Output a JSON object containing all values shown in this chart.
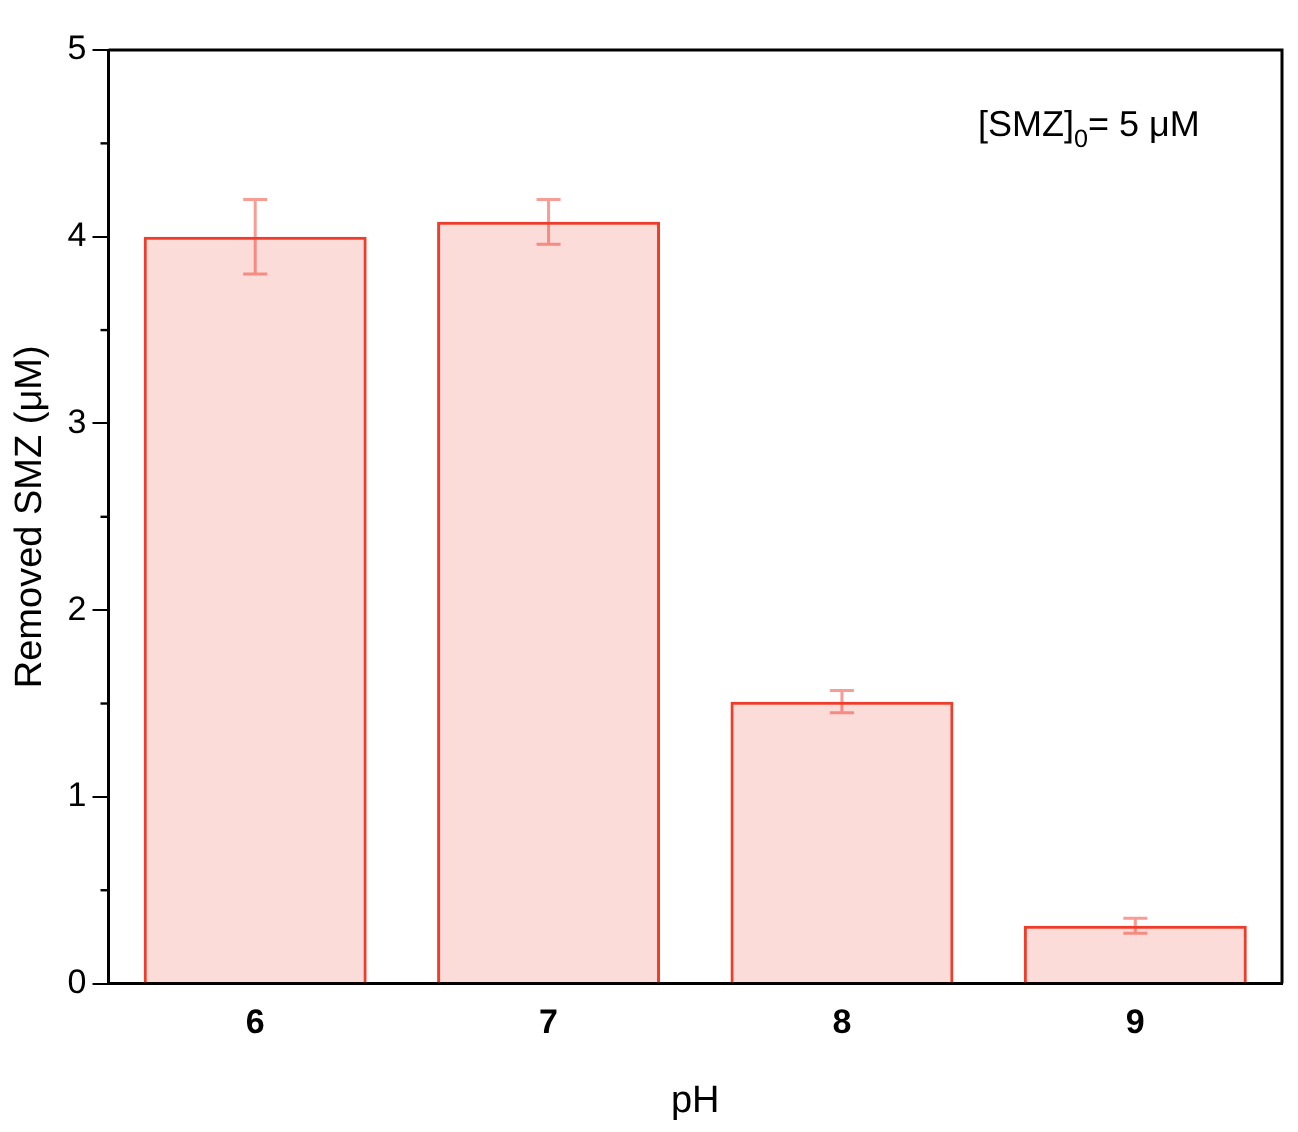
{
  "chart_data": {
    "type": "bar",
    "xlabel": "pH",
    "ylabel": "Removed SMZ (μM)",
    "categories": [
      "6",
      "7",
      "8",
      "9"
    ],
    "values": [
      4.0,
      4.08,
      1.51,
      0.31
    ],
    "errors": [
      0.2,
      0.12,
      0.06,
      0.04
    ],
    "color": "#f03c2a",
    "ylim": [
      0,
      5
    ],
    "yticks": [
      0,
      1,
      2,
      3,
      4,
      5
    ],
    "annotations": [
      "[SMZ]$_{0}$= 5 μM"
    ]
  }
}
